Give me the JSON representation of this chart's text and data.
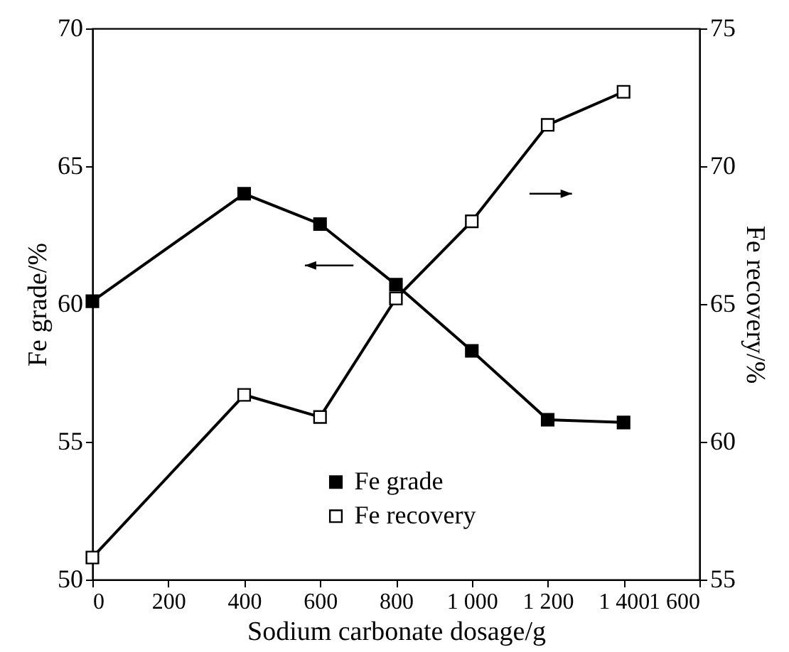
{
  "chart_data": {
    "type": "line",
    "xlabel": "Sodium carbonate dosage/g",
    "ylabel": "Fe grade/%",
    "y2label": "Fe recovery/%",
    "x": [
      0,
      400,
      600,
      800,
      1000,
      1200,
      1400
    ],
    "series": [
      {
        "name": "Fe grade",
        "color": "#000000",
        "values": [
          60.1,
          64.0,
          62.9,
          60.7,
          58.3,
          55.8,
          55.7
        ]
      },
      {
        "name": "Fe recovery",
        "color": "#000000",
        "axis": "y2",
        "values": [
          55.8,
          61.7,
          60.9,
          65.2,
          68.0,
          71.5,
          72.7
        ]
      }
    ],
    "xlim": [
      0,
      1600
    ],
    "xticks": [
      0,
      200,
      400,
      600,
      800,
      {
        "value": 1000,
        "label": "1 000"
      },
      {
        "value": 1200,
        "label": "1 200"
      },
      {
        "value": 1400,
        "label": "1 400"
      },
      {
        "value": 1600,
        "label": "1 600"
      }
    ],
    "ylim": [
      50,
      70
    ],
    "yticks": [
      50,
      55,
      60,
      65,
      70
    ],
    "y2lim": [
      55,
      75
    ],
    "y2ticks": [
      55,
      60,
      65,
      70,
      75
    ],
    "legend": "bottom",
    "marker": "square",
    "line_style": "solid",
    "grid": false
  }
}
